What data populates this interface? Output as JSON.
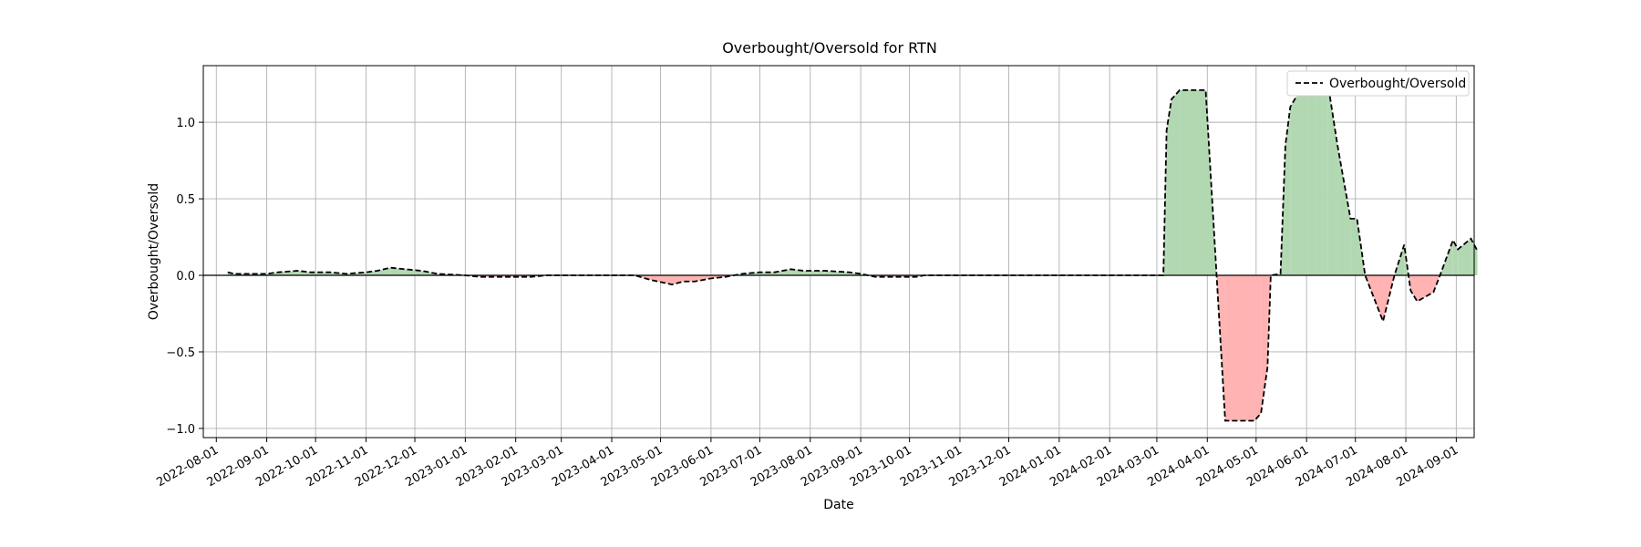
{
  "chart_data": {
    "type": "line",
    "title": "Overbought/Oversold for RTN",
    "xlabel": "Date",
    "ylabel": "Overbought/Oversold",
    "xlim": [
      "2022-07-24",
      "2024-09-12"
    ],
    "ylim": [
      -1.06,
      1.37
    ],
    "x_ticks": [
      "2022-08-01",
      "2022-09-01",
      "2022-10-01",
      "2022-11-01",
      "2022-12-01",
      "2023-01-01",
      "2023-02-01",
      "2023-03-01",
      "2023-04-01",
      "2023-05-01",
      "2023-06-01",
      "2023-07-01",
      "2023-08-01",
      "2023-09-01",
      "2023-10-01",
      "2023-11-01",
      "2023-12-01",
      "2024-01-01",
      "2024-02-01",
      "2024-03-01",
      "2024-04-01",
      "2024-05-01",
      "2024-06-01",
      "2024-07-01",
      "2024-08-01",
      "2024-09-01"
    ],
    "y_ticks": [
      -1.0,
      -0.5,
      0.0,
      0.5,
      1.0
    ],
    "y_tick_labels": [
      "−1.0",
      "−0.5",
      "0.0",
      "0.5",
      "1.0"
    ],
    "grid": true,
    "legend": {
      "position": "top-right",
      "entries": [
        "Overbought/Oversold"
      ]
    },
    "zero_line": 0,
    "colors": {
      "line": "#000000",
      "positive_fill": "#b2d8b2",
      "negative_fill": "#ffb3b3",
      "grid": "#b0b0b0"
    },
    "series": [
      {
        "name": "Overbought/Oversold",
        "style": "dashed",
        "points": [
          [
            "2022-08-08",
            0.02
          ],
          [
            "2022-08-12",
            0.01
          ],
          [
            "2022-08-22",
            0.01
          ],
          [
            "2022-09-01",
            0.01
          ],
          [
            "2022-09-08",
            0.02
          ],
          [
            "2022-09-20",
            0.03
          ],
          [
            "2022-09-28",
            0.02
          ],
          [
            "2022-10-10",
            0.02
          ],
          [
            "2022-10-20",
            0.01
          ],
          [
            "2022-11-01",
            0.02
          ],
          [
            "2022-11-08",
            0.03
          ],
          [
            "2022-11-16",
            0.05
          ],
          [
            "2022-11-25",
            0.04
          ],
          [
            "2022-12-05",
            0.03
          ],
          [
            "2022-12-15",
            0.01
          ],
          [
            "2023-01-01",
            0.0
          ],
          [
            "2023-01-10",
            -0.01
          ],
          [
            "2023-01-25",
            -0.01
          ],
          [
            "2023-02-10",
            -0.01
          ],
          [
            "2023-02-20",
            0.0
          ],
          [
            "2023-03-10",
            0.0
          ],
          [
            "2023-04-01",
            0.0
          ],
          [
            "2023-04-15",
            0.0
          ],
          [
            "2023-04-25",
            -0.03
          ],
          [
            "2023-05-08",
            -0.06
          ],
          [
            "2023-05-15",
            -0.04
          ],
          [
            "2023-05-22",
            -0.04
          ],
          [
            "2023-06-01",
            -0.02
          ],
          [
            "2023-06-10",
            -0.01
          ],
          [
            "2023-06-20",
            0.01
          ],
          [
            "2023-07-01",
            0.02
          ],
          [
            "2023-07-10",
            0.02
          ],
          [
            "2023-07-20",
            0.04
          ],
          [
            "2023-07-28",
            0.03
          ],
          [
            "2023-08-10",
            0.03
          ],
          [
            "2023-08-25",
            0.02
          ],
          [
            "2023-09-01",
            0.01
          ],
          [
            "2023-09-10",
            -0.01
          ],
          [
            "2023-09-25",
            -0.01
          ],
          [
            "2023-10-05",
            -0.01
          ],
          [
            "2023-10-10",
            0.0
          ],
          [
            "2023-11-01",
            0.0
          ],
          [
            "2023-12-01",
            0.0
          ],
          [
            "2024-01-01",
            0.0
          ],
          [
            "2024-02-01",
            0.0
          ],
          [
            "2024-03-01",
            0.0
          ],
          [
            "2024-03-05",
            0.0
          ],
          [
            "2024-03-07",
            0.95
          ],
          [
            "2024-03-10",
            1.15
          ],
          [
            "2024-03-15",
            1.21
          ],
          [
            "2024-03-31",
            1.21
          ],
          [
            "2024-04-12",
            -0.95
          ],
          [
            "2024-04-30",
            -0.95
          ],
          [
            "2024-05-04",
            -0.9
          ],
          [
            "2024-05-08",
            -0.6
          ],
          [
            "2024-05-10",
            0.0
          ],
          [
            "2024-05-16",
            0.01
          ],
          [
            "2024-05-19",
            0.85
          ],
          [
            "2024-05-22",
            1.1
          ],
          [
            "2024-05-28",
            1.21
          ],
          [
            "2024-06-02",
            1.22
          ],
          [
            "2024-06-06",
            1.24
          ],
          [
            "2024-06-14",
            1.26
          ],
          [
            "2024-06-20",
            0.85
          ],
          [
            "2024-06-28",
            0.37
          ],
          [
            "2024-07-02",
            0.37
          ],
          [
            "2024-07-07",
            0.0
          ],
          [
            "2024-07-18",
            -0.3
          ],
          [
            "2024-07-25",
            0.0
          ],
          [
            "2024-07-31",
            0.2
          ],
          [
            "2024-08-04",
            -0.1
          ],
          [
            "2024-08-08",
            -0.17
          ],
          [
            "2024-08-18",
            -0.11
          ],
          [
            "2024-08-22",
            0.0
          ],
          [
            "2024-08-30",
            0.23
          ],
          [
            "2024-09-02",
            0.17
          ],
          [
            "2024-09-10",
            0.24
          ],
          [
            "2024-09-14",
            0.16
          ]
        ]
      }
    ]
  }
}
